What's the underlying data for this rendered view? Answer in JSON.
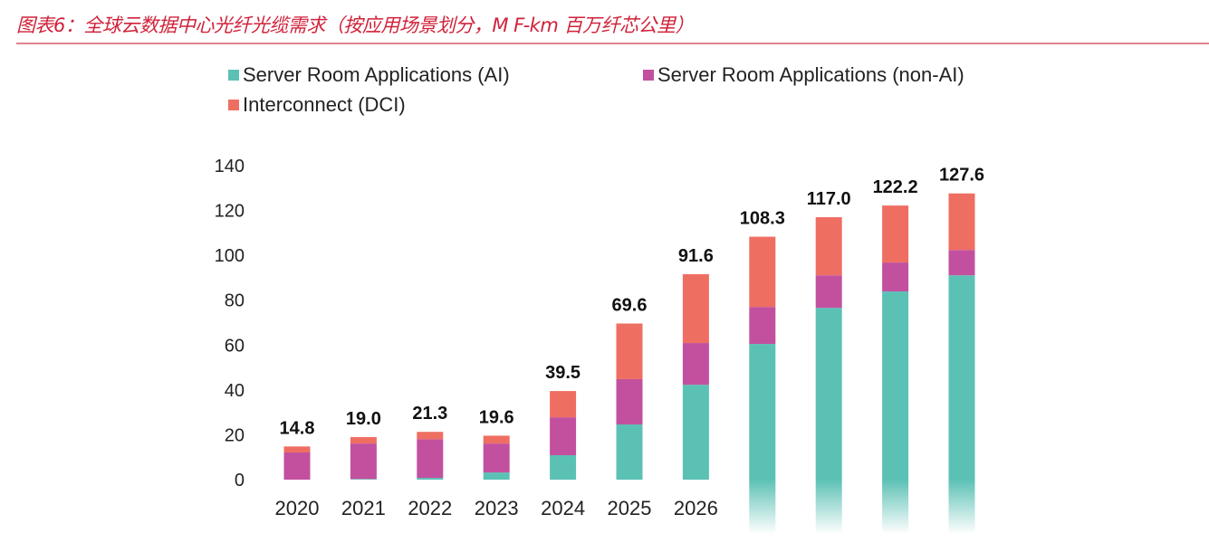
{
  "header": {
    "title": "图表6：全球云数据中心光纤光缆需求（按应用场景划分，M F-km 百万纤芯公里）"
  },
  "colors": {
    "ai": "#5cc1b5",
    "non_ai": "#c2509f",
    "dci": "#ef6e62",
    "title": "#d0223a"
  },
  "chart_data": {
    "type": "bar",
    "stacked": true,
    "title": "图表6：全球云数据中心光纤光缆需求（按应用场景划分，M F-km 百万纤芯公里）",
    "xlabel": "",
    "ylabel": "",
    "ylim": [
      0,
      140
    ],
    "yticks": [
      0,
      20,
      40,
      60,
      80,
      100,
      120,
      140
    ],
    "grid": false,
    "legend_position": "top",
    "categories": [
      "2020",
      "2021",
      "2022",
      "2023",
      "2024",
      "2025",
      "2026",
      "",
      "",
      "",
      ""
    ],
    "series": [
      {
        "name": "Server Room Applications (AI)",
        "color_key": "ai",
        "values": [
          0.0,
          0.3,
          0.8,
          3.2,
          10.9,
          24.6,
          42.3,
          60.5,
          76.6,
          83.9,
          91.1
        ]
      },
      {
        "name": "Server Room Applications (non-AI)",
        "color_key": "non_ai",
        "values": [
          12.1,
          15.8,
          17.2,
          12.9,
          16.9,
          20.2,
          18.6,
          16.5,
          14.5,
          12.9,
          11.3
        ]
      },
      {
        "name": "Interconnect (DCI)",
        "color_key": "dci",
        "values": [
          2.7,
          2.9,
          3.3,
          3.5,
          11.7,
          24.8,
          30.7,
          31.3,
          25.9,
          25.4,
          25.2
        ]
      }
    ],
    "totals": [
      14.8,
      19.0,
      21.3,
      19.6,
      39.5,
      69.6,
      91.6,
      108.3,
      117.0,
      122.2,
      127.6
    ],
    "total_labels": [
      "14.8",
      "19.0",
      "21.3",
      "19.6",
      "39.5",
      "69.6",
      "91.6",
      "108.3",
      "117.0",
      "122.2",
      "127.6"
    ],
    "legend": [
      {
        "label": "Server Room Applications (AI)",
        "color_key": "ai"
      },
      {
        "label": "Server Room Applications (non-AI)",
        "color_key": "non_ai"
      },
      {
        "label": "Interconnect (DCI)",
        "color_key": "dci"
      }
    ]
  }
}
